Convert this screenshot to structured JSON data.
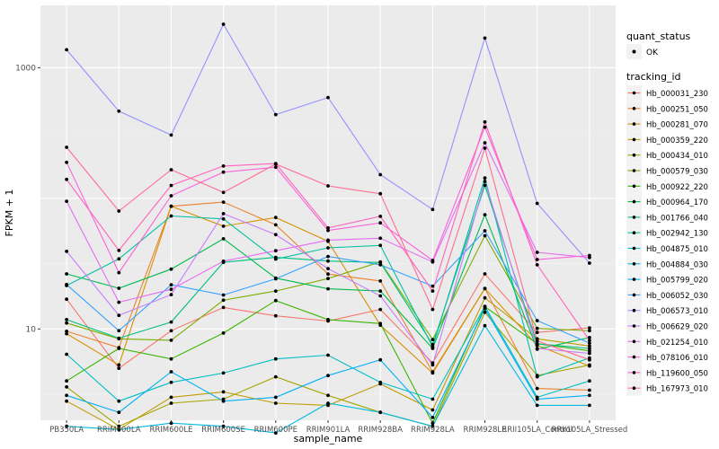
{
  "chart_data": {
    "type": "line",
    "scale": "log10",
    "xlabel": "sample_name",
    "ylabel": "FPKM + 1",
    "y_ticks": [
      {
        "value": 10,
        "label": "10"
      },
      {
        "value": 1000,
        "label": "1000"
      }
    ],
    "ylim": [
      2.0,
      3000
    ],
    "grid": true,
    "legend_placement": "right",
    "categories": [
      "PB350LA",
      "RRIM600LA",
      "RRIM600LE",
      "RRIM600SE",
      "RRIM600PE",
      "RRIM901LA",
      "RRIM928BA",
      "RRIM928LA",
      "RRIM928LE",
      "RRII105LA_Control",
      "RRII105LA_Stressed"
    ],
    "legend_quant": {
      "title": "quant_status",
      "items": [
        {
          "label": "OK"
        }
      ]
    },
    "legend_tracking_title": "tracking_id",
    "series": [
      {
        "name": "Hb_000031_230",
        "color": "#F8766D",
        "values": [
          16.9,
          5.0,
          9.7,
          14.6,
          12.6,
          11.5,
          14.1,
          5.5,
          26.4,
          9.4,
          10.2
        ]
      },
      {
        "name": "Hb_000251_050",
        "color": "#EA8331",
        "values": [
          9.6,
          7.2,
          86.9,
          93.5,
          62.7,
          26.3,
          23.3,
          4.7,
          20.4,
          3.5,
          3.4
        ]
      },
      {
        "name": "Hb_000281_070",
        "color": "#D89000",
        "values": [
          9.2,
          5.3,
          87.1,
          61.2,
          71.3,
          46.9,
          10.7,
          4.6,
          20.4,
          7.5,
          5.2
        ]
      },
      {
        "name": "Hb_000359_220",
        "color": "#C09B00",
        "values": [
          2.8,
          1.7,
          3.0,
          3.3,
          2.7,
          2.6,
          3.8,
          2.4,
          17.3,
          8.4,
          7.4
        ]
      },
      {
        "name": "Hb_000434_010",
        "color": "#A3A500",
        "values": [
          3.6,
          1.8,
          2.7,
          2.9,
          4.3,
          3.1,
          2.3,
          1.8,
          13.4,
          4.4,
          5.3
        ]
      },
      {
        "name": "Hb_000579_030",
        "color": "#7CAE00",
        "values": [
          11.1,
          8.4,
          8.2,
          16.6,
          19.5,
          24.3,
          32.6,
          8.3,
          51.7,
          10.1,
          9.7
        ]
      },
      {
        "name": "Hb_000922_220",
        "color": "#39B600",
        "values": [
          4.0,
          7.1,
          5.9,
          9.3,
          16.5,
          11.8,
          11.0,
          1.9,
          14.8,
          7.7,
          6.8
        ]
      },
      {
        "name": "Hb_000964_170",
        "color": "#00BB4E",
        "values": [
          26.4,
          20.5,
          28.7,
          49.0,
          24.5,
          20.3,
          19.5,
          7.1,
          74.9,
          7.0,
          8.6
        ]
      },
      {
        "name": "Hb_001766_040",
        "color": "#00BF7D",
        "values": [
          11.8,
          8.5,
          11.3,
          32.4,
          35.3,
          33.1,
          32.3,
          7.6,
          125.8,
          7.7,
          7.1
        ]
      },
      {
        "name": "Hb_002942_130",
        "color": "#00C1A3",
        "values": [
          21.5,
          34.4,
          73.3,
          69.6,
          34.3,
          41.8,
          43.6,
          7.3,
          143.4,
          4.3,
          6.0
        ]
      },
      {
        "name": "Hb_004875_010",
        "color": "#00BFC4",
        "values": [
          6.4,
          2.8,
          3.9,
          4.6,
          5.9,
          6.3,
          3.9,
          2.9,
          14.9,
          3.0,
          4.0
        ]
      },
      {
        "name": "Hb_004884_030",
        "color": "#00BAE0",
        "values": [
          1.8,
          1.7,
          1.9,
          1.8,
          1.6,
          2.7,
          2.3,
          1.8,
          10.6,
          2.6,
          2.6
        ]
      },
      {
        "name": "Hb_005799_020",
        "color": "#00B0F6",
        "values": [
          3.1,
          2.3,
          4.7,
          2.8,
          3.0,
          4.4,
          5.8,
          2.1,
          14.3,
          2.9,
          3.1
        ]
      },
      {
        "name": "Hb_006052_030",
        "color": "#35A2FF",
        "values": [
          21.9,
          9.7,
          21.8,
          18.2,
          24.2,
          35.9,
          31.0,
          21.3,
          56.4,
          11.6,
          7.8
        ]
      },
      {
        "name": "Hb_006573_010",
        "color": "#9590FF",
        "values": [
          1371.6,
          464.9,
          305.0,
          2152.9,
          437.6,
          591.3,
          151.9,
          82.1,
          1687.0,
          91.5,
          31.9
        ]
      },
      {
        "name": "Hb_006629_020",
        "color": "#C77CFF",
        "values": [
          39.3,
          12.7,
          18.3,
          76.4,
          52.7,
          29.0,
          17.9,
          5.3,
          134.7,
          7.1,
          6.5
        ]
      },
      {
        "name": "Hb_021254_010",
        "color": "#E76BF3",
        "values": [
          95.0,
          16.0,
          20.1,
          33.0,
          39.7,
          47.9,
          49.5,
          32.6,
          266.3,
          38.6,
          35.2
        ]
      },
      {
        "name": "Hb_078106_010",
        "color": "#FA62DB",
        "values": [
          188.6,
          27.0,
          104.6,
          158.6,
          173.1,
          56.8,
          64.9,
          33.5,
          350.6,
          34.0,
          36.5
        ]
      },
      {
        "name": "Hb_119600_050",
        "color": "#FF62BC",
        "values": [
          139.6,
          39.9,
          125.5,
          176.7,
          184.6,
          59.4,
          72.8,
          19.5,
          384.6,
          31.0,
          8.2
        ]
      },
      {
        "name": "Hb_167973_010",
        "color": "#FF6C91",
        "values": [
          246.1,
          79.9,
          165.7,
          110.9,
          183.2,
          124.5,
          108.5,
          14.1,
          242.2,
          8.1,
          5.8
        ]
      }
    ]
  }
}
